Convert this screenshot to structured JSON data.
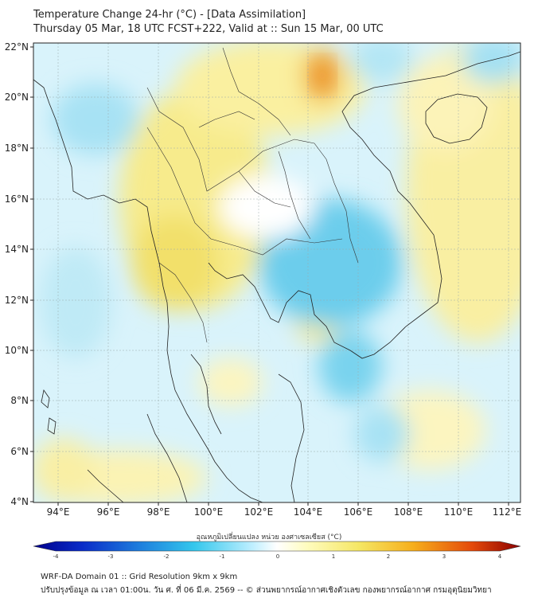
{
  "title": {
    "line1": "Temperature Change 24-hr (°C) - [Data Assimilation]",
    "line2": "Thursday 05 Mar, 18 UTC FCST+222, Valid at :: Sun 15 Mar, 00 UTC"
  },
  "map": {
    "region": "Mainland Southeast Asia",
    "lat_labels": [
      "22°N",
      "20°N",
      "18°N",
      "16°N",
      "14°N",
      "12°N",
      "10°N",
      "8°N",
      "6°N",
      "4°N"
    ],
    "lon_labels": [
      "94°E",
      "96°E",
      "98°E",
      "100°E",
      "102°E",
      "104°E",
      "106°E",
      "108°E",
      "110°E",
      "112°E"
    ],
    "lat_range": [
      4,
      22
    ],
    "lon_range": [
      93,
      112.5
    ]
  },
  "colorbar": {
    "label": "อุณหภูมิเปลี่ยนแปลง หน่วย องศาเซลเซียส (°C)",
    "ticks": [
      "-4",
      "-3",
      "-2",
      "-1",
      "0",
      "1",
      "2",
      "3",
      "4"
    ],
    "range": [
      -4,
      4
    ],
    "colors": [
      "#00008b",
      "#0a2cc8",
      "#1e7fdd",
      "#34c7ec",
      "#bfefff",
      "#ffffff",
      "#fffcc0",
      "#f5e663",
      "#f6ae1c",
      "#e44a0b",
      "#8b0000"
    ]
  },
  "footer": {
    "line1": "WRF-DA Domain 01 :: Grid Resolution 9km x 9km",
    "line2": "ปรับปรุงข้อมูล ณ เวลา 01:00น. วัน ศ. ที่ 06 มี.ค. 2569 -- © ส่วนพยากรณ์อากาศเชิงตัวเลข กองพยากรณ์อากาศ กรมอุตุนิยมวิทยา"
  }
}
